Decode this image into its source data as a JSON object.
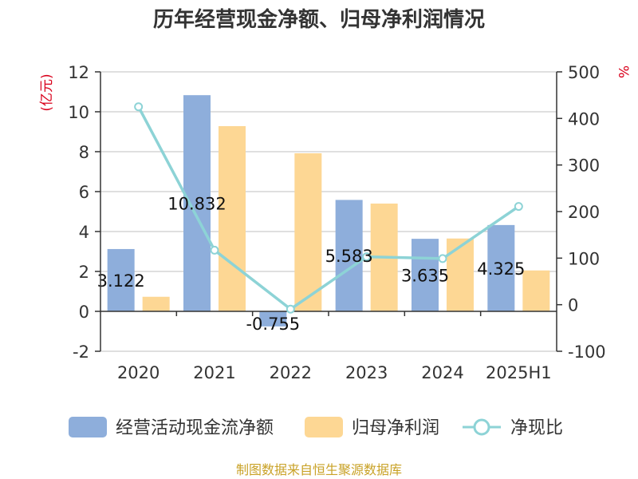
{
  "chart_data": {
    "type": "bar",
    "title": "历年经营现金净额、归母净利润情况",
    "categories": [
      "2020",
      "2021",
      "2022",
      "2023",
      "2024",
      "2025H1"
    ],
    "left_axis": {
      "unit": "(亿元)",
      "ylim": [
        -2,
        12
      ],
      "ticks": [
        -2,
        0,
        2,
        4,
        6,
        8,
        10,
        12
      ]
    },
    "right_axis": {
      "unit": "%",
      "ylim": [
        -100,
        500
      ],
      "ticks": [
        -100,
        0,
        100,
        200,
        300,
        400,
        500
      ]
    },
    "series": [
      {
        "name": "经营活动现金流净额",
        "type": "bar",
        "axis": "left",
        "color": "#8eaedb",
        "values": [
          3.122,
          10.832,
          -0.755,
          5.583,
          3.635,
          4.325
        ],
        "labels": [
          "3.122",
          "10.832",
          "-0.755",
          "5.583",
          "3.635",
          "4.325"
        ]
      },
      {
        "name": "归母净利润",
        "type": "bar",
        "axis": "left",
        "color": "#fdd794",
        "values": [
          0.73,
          9.28,
          7.92,
          5.4,
          3.65,
          2.05
        ]
      },
      {
        "name": "净现比",
        "type": "line",
        "axis": "right",
        "color": "#8dd3d6",
        "values": [
          425,
          117,
          -9.5,
          103,
          99,
          211
        ]
      }
    ],
    "grid": true,
    "legend_position": "bottom"
  },
  "source_text": "制图数据来自恒生聚源数据库"
}
